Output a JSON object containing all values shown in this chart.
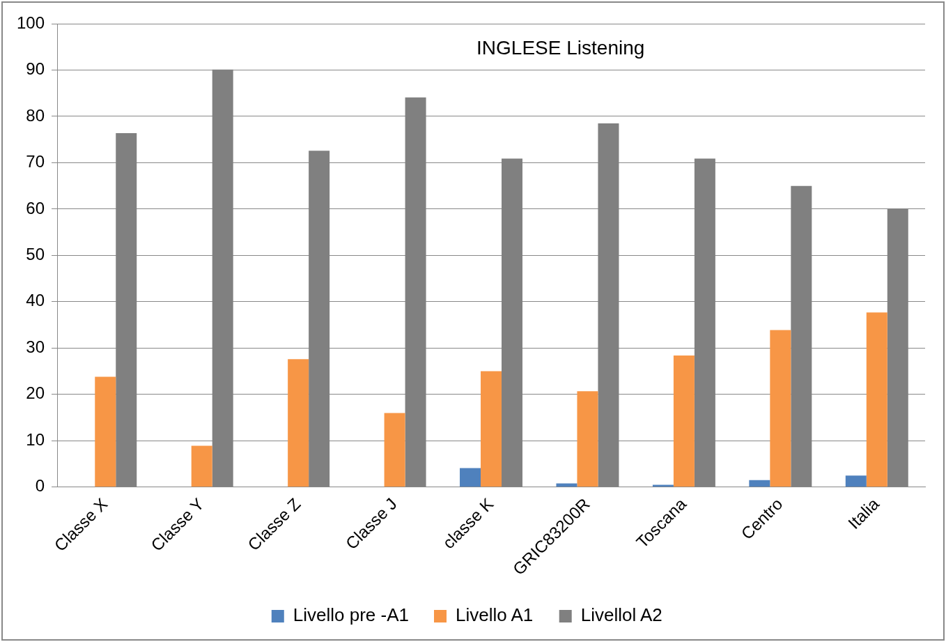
{
  "chart_data": {
    "type": "bar",
    "title": "INGLESE Listening",
    "categories": [
      "Classe X",
      "Classe Y",
      "Classe Z",
      "Classe J",
      "classe K",
      "GRIC83200R",
      "Toscana",
      "Centro",
      "Italia"
    ],
    "series": [
      {
        "name": "Livello pre -A1",
        "color": "#4f81bd",
        "values": [
          0,
          0,
          0,
          0,
          4.1,
          0.8,
          0.5,
          1.5,
          2.5
        ]
      },
      {
        "name": "Livello A1",
        "color": "#f79646",
        "values": [
          23.8,
          8.9,
          27.6,
          16.0,
          25.0,
          20.7,
          28.4,
          33.9,
          37.7
        ]
      },
      {
        "name": "Livellol A2",
        "color": "#808080",
        "values": [
          76.4,
          90.1,
          72.6,
          84.1,
          70.9,
          78.5,
          70.9,
          65.0,
          60.0
        ]
      }
    ],
    "ylim": [
      0,
      100
    ],
    "yticks": [
      0,
      10,
      20,
      30,
      40,
      50,
      60,
      70,
      80,
      90,
      100
    ],
    "grid": "y",
    "legend": "bottom"
  }
}
